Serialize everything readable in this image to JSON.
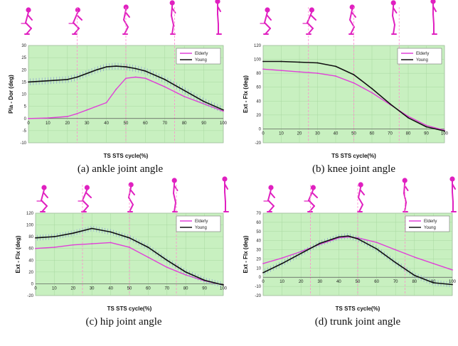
{
  "figure": {
    "captions": [
      "(a) ankle joint angle",
      "(b) knee joint angle",
      "(c) hip joint angle",
      "(d) trunk joint angle"
    ],
    "colors": {
      "elderly": "#e040d8",
      "young": "#111111",
      "error_bars": "#8aa0d0",
      "plot_background": "#c8f0c0",
      "grid": "#a8d8a0",
      "phase_lines": "#ff8ccf",
      "stick_figures": "#e020c0"
    },
    "icons": [
      "stick-figure-sit-to-stand-icon"
    ]
  },
  "chart_data": [
    {
      "type": "line",
      "title": "(a) ankle joint angle",
      "xlabel": "TS STS cycle(%)",
      "ylabel": "Pla - Dor (deg)",
      "xlim": [
        0,
        100
      ],
      "ylim": [
        -10,
        30
      ],
      "xticks": [
        "0",
        "10",
        "20",
        "30",
        "40",
        "50",
        "60",
        "70",
        "80",
        "90",
        "100"
      ],
      "yticks": [
        "-10",
        "-5",
        "0",
        "5",
        "10",
        "15",
        "20",
        "25",
        "30"
      ],
      "grid": true,
      "legend_position": "top-right",
      "x": [
        0,
        10,
        20,
        25,
        30,
        35,
        40,
        45,
        50,
        55,
        60,
        70,
        80,
        90,
        100
      ],
      "series": [
        {
          "name": "Elderly",
          "values": [
            0,
            0.2,
            0.8,
            2,
            3.5,
            5,
            6.5,
            12,
            16.5,
            17,
            16.5,
            13,
            9,
            6,
            3
          ]
        },
        {
          "name": "Young",
          "values": [
            15,
            15.5,
            16,
            17,
            18.5,
            20,
            21.2,
            21.5,
            21.2,
            20.5,
            19.5,
            16,
            11.5,
            7,
            3.5
          ],
          "error_bars": true
        }
      ]
    },
    {
      "type": "line",
      "title": "(b) knee joint angle",
      "xlabel": "TS STS cycle(%)",
      "ylabel": "Ext - Flx (deg)",
      "xlim": [
        0,
        100
      ],
      "ylim": [
        -20,
        120
      ],
      "xticks": [
        "0",
        "10",
        "20",
        "30",
        "40",
        "50",
        "60",
        "70",
        "80",
        "90",
        "100"
      ],
      "yticks": [
        "-20",
        "0",
        "20",
        "40",
        "60",
        "80",
        "100",
        "120"
      ],
      "grid": true,
      "legend_position": "top-right",
      "x": [
        0,
        10,
        20,
        30,
        40,
        50,
        60,
        70,
        80,
        90,
        100
      ],
      "series": [
        {
          "name": "Elderly",
          "values": [
            86,
            84,
            82,
            80,
            76,
            66,
            52,
            35,
            18,
            5,
            -2
          ]
        },
        {
          "name": "Young",
          "values": [
            97,
            97,
            96,
            95,
            90,
            78,
            58,
            36,
            16,
            3,
            -3
          ]
        }
      ]
    },
    {
      "type": "line",
      "title": "(c) hip joint angle",
      "xlabel": "TS STS cycle(%)",
      "ylabel": "Ext - Flx (deg)",
      "xlim": [
        0,
        100
      ],
      "ylim": [
        -20,
        120
      ],
      "xticks": [
        "0",
        "10",
        "20",
        "30",
        "40",
        "50",
        "60",
        "70",
        "80",
        "90",
        "100"
      ],
      "yticks": [
        "-20",
        "0",
        "20",
        "40",
        "60",
        "80",
        "100",
        "120"
      ],
      "grid": true,
      "legend_position": "top-right",
      "x": [
        0,
        10,
        20,
        30,
        40,
        50,
        60,
        70,
        80,
        90,
        100
      ],
      "series": [
        {
          "name": "Elderly",
          "values": [
            60,
            62,
            66,
            68,
            70,
            62,
            45,
            28,
            15,
            5,
            -2
          ]
        },
        {
          "name": "Young",
          "values": [
            78,
            80,
            86,
            94,
            88,
            78,
            62,
            40,
            20,
            6,
            -2
          ],
          "error_bars": true
        }
      ]
    },
    {
      "type": "line",
      "title": "(d) trunk joint angle",
      "xlabel": "TS STS cycle(%)",
      "ylabel": "Ext - Flx (deg)",
      "xlim": [
        0,
        100
      ],
      "ylim": [
        -20,
        70
      ],
      "xticks": [
        "0",
        "10",
        "20",
        "30",
        "40",
        "50",
        "60",
        "70",
        "80",
        "90",
        "100"
      ],
      "yticks": [
        "-20",
        "-10",
        "0",
        "10",
        "20",
        "30",
        "40",
        "50",
        "60",
        "70"
      ],
      "grid": true,
      "legend_position": "top-right",
      "x": [
        0,
        10,
        20,
        30,
        40,
        45,
        50,
        60,
        70,
        80,
        90,
        100
      ],
      "series": [
        {
          "name": "Elderly",
          "values": [
            15,
            21,
            28,
            36,
            43,
            44,
            43,
            38,
            30,
            22,
            15,
            8
          ]
        },
        {
          "name": "Young",
          "values": [
            5,
            15,
            26,
            37,
            44,
            45,
            42,
            31,
            16,
            2,
            -6,
            -8
          ],
          "error_bars": true
        }
      ]
    }
  ]
}
